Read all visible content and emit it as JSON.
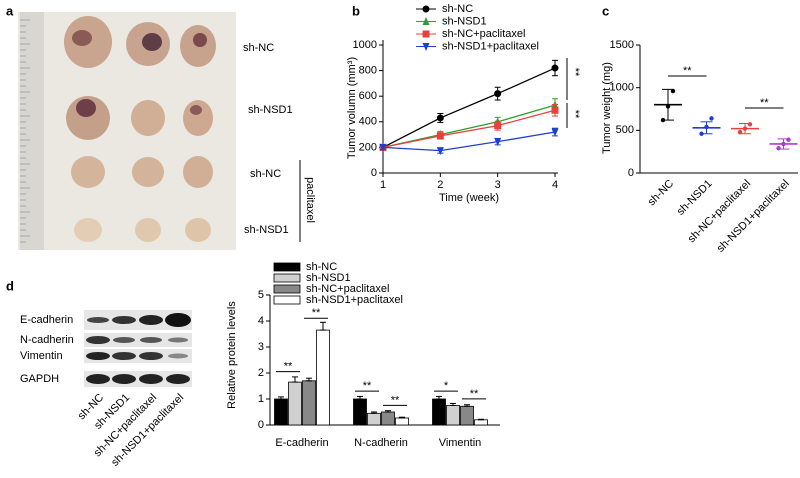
{
  "photo": {
    "label": "a",
    "rows": [
      "sh-NC",
      "sh-NSD1",
      "sh-NC",
      "sh-NSD1"
    ],
    "group_label": "paclitaxel"
  },
  "blot": {
    "label": "d",
    "proteins": [
      "E-cadherin",
      "N-cadherin",
      "Vimentin",
      "GAPDH"
    ],
    "lanes": [
      "sh-NC",
      "sh-NSD1",
      "sh-NC+paclitaxel",
      "sh-NSD1+paclitaxel"
    ]
  },
  "chart_data": [
    {
      "type": "line",
      "label": "b",
      "xlabel": "Time (week)",
      "ylabel": "Tumor volumn (mm³)",
      "x": [
        1,
        2,
        3,
        4
      ],
      "xlim": [
        1,
        4
      ],
      "xticks": [
        1,
        2,
        3,
        4
      ],
      "ylim": [
        0,
        1000
      ],
      "yticks": [
        0,
        200,
        400,
        600,
        800,
        1000
      ],
      "series": [
        {
          "name": "sh-NC",
          "color": "#000000",
          "marker": "circle",
          "values": [
            200,
            430,
            620,
            820
          ],
          "errors": [
            15,
            35,
            50,
            60
          ]
        },
        {
          "name": "sh-NSD1",
          "color": "#2ca02c",
          "marker": "triangle-up",
          "values": [
            200,
            300,
            400,
            530
          ],
          "errors": [
            15,
            25,
            35,
            50
          ]
        },
        {
          "name": "sh-NC+paclitaxel",
          "color": "#e8413c",
          "marker": "square",
          "values": [
            200,
            290,
            370,
            490
          ],
          "errors": [
            15,
            25,
            35,
            45
          ]
        },
        {
          "name": "sh-NSD1+paclitaxel",
          "color": "#1f3fd0",
          "marker": "triangle-down",
          "values": [
            200,
            175,
            245,
            320
          ],
          "errors": [
            15,
            20,
            25,
            30
          ]
        }
      ],
      "annotations": [
        "**",
        "**"
      ]
    },
    {
      "type": "dot",
      "label": "c",
      "ylabel": "Tumor weight (mg)",
      "categories": [
        "sh-NC",
        "sh-NSD1",
        "sh-NC+paclitaxel",
        "sh-NSD1+paclitaxel"
      ],
      "colors": [
        "#000000",
        "#1f3fd0",
        "#e8413c",
        "#b03ad0"
      ],
      "values": [
        800,
        530,
        520,
        340
      ],
      "errors": [
        180,
        70,
        60,
        60
      ],
      "points": [
        [
          620,
          780,
          960
        ],
        [
          460,
          540,
          640
        ],
        [
          480,
          520,
          570
        ],
        [
          290,
          340,
          390
        ]
      ],
      "ylim": [
        0,
        1500
      ],
      "yticks": [
        0,
        500,
        1000,
        1500
      ],
      "annotations": [
        "**",
        "**"
      ]
    },
    {
      "type": "bar",
      "ylabel": "Relative protein levels",
      "categories": [
        "E-cadherin",
        "N-cadherin",
        "Vimentin"
      ],
      "ylim": [
        0,
        5
      ],
      "yticks": [
        0,
        1,
        2,
        3,
        4,
        5
      ],
      "series": [
        {
          "name": "sh-NC",
          "color": "#000000",
          "values": [
            1.0,
            1.0,
            1.0
          ],
          "errors": [
            0.08,
            0.1,
            0.1
          ]
        },
        {
          "name": "sh-NSD1",
          "color": "#d0d0d0",
          "values": [
            1.65,
            0.45,
            0.75
          ],
          "errors": [
            0.2,
            0.05,
            0.08
          ]
        },
        {
          "name": "sh-NC+paclitaxel",
          "color": "#888888",
          "values": [
            1.7,
            0.5,
            0.72
          ],
          "errors": [
            0.1,
            0.05,
            0.06
          ]
        },
        {
          "name": "sh-NSD1+paclitaxel",
          "color": "#ffffff",
          "values": [
            3.65,
            0.27,
            0.2
          ],
          "errors": [
            0.3,
            0.03,
            0.02
          ]
        }
      ],
      "annotations": [
        "**",
        "**",
        "**",
        "**",
        "*",
        "**"
      ]
    }
  ]
}
